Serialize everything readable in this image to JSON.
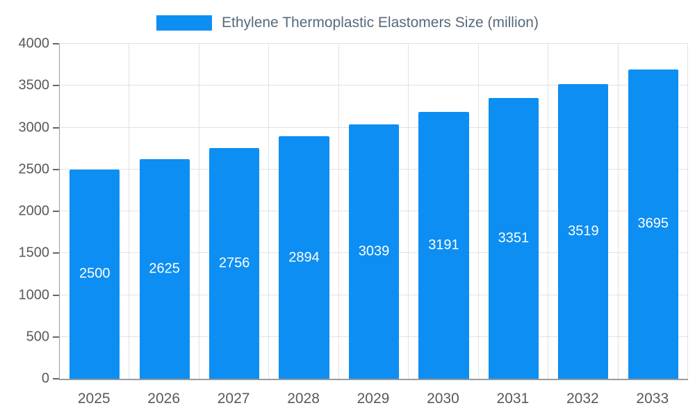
{
  "chart_data": {
    "type": "bar",
    "title": "Ethylene Thermoplastic Elastomers Size (million)",
    "legend": {
      "label": "Ethylene Thermoplastic Elastomers Size (million)",
      "position": "top"
    },
    "categories": [
      "2025",
      "2026",
      "2027",
      "2028",
      "2029",
      "2030",
      "2031",
      "2032",
      "2033"
    ],
    "values": [
      2500,
      2625,
      2756,
      2894,
      3039,
      3191,
      3351,
      3519,
      3695
    ],
    "xlabel": "",
    "ylabel": "",
    "ylim": [
      0,
      4000
    ],
    "yticks": [
      0,
      500,
      1000,
      1500,
      2000,
      2500,
      3000,
      3500,
      4000
    ],
    "grid": true,
    "bar_labels_visible": true,
    "colors": {
      "bar": "#0d8ef2",
      "bar_label": "#ffffff",
      "tick_label": "#595959",
      "tick_mark": "#666666",
      "legend_label": "#56697a",
      "gridline": "#e2e2e2",
      "axis_line": "#9a9a9a"
    }
  }
}
